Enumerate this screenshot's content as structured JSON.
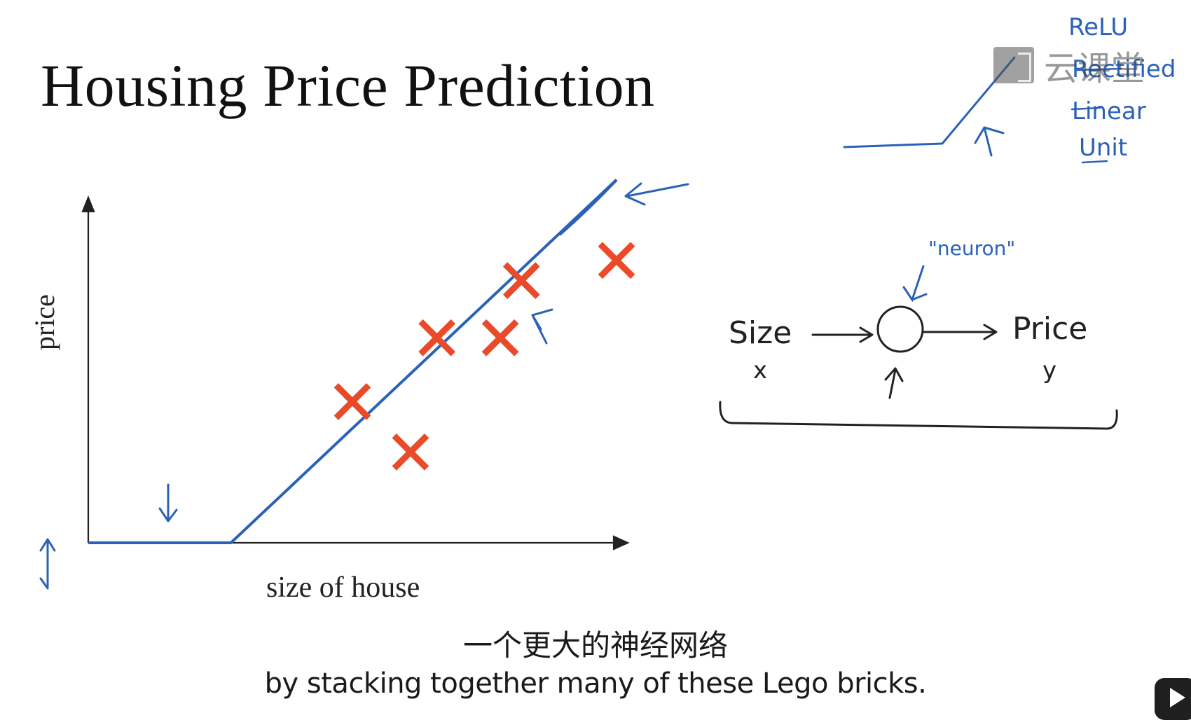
{
  "slide": {
    "title": "Housing Price Prediction",
    "y_axis_label": "price",
    "x_axis_label": "size of house"
  },
  "annotations": {
    "relu_lines": [
      "ReLU",
      "Rectified",
      "Linear",
      "Unit"
    ],
    "neuron_label": "\"neuron\"",
    "input_label": "Size",
    "input_var": "x",
    "output_label": "Price",
    "output_var": "y"
  },
  "watermark": {
    "text": "云课堂",
    "logo_icon": "video-logo-icon"
  },
  "subtitles": {
    "chinese": "一个更大的神经网络",
    "english": "by stacking together many of these Lego bricks."
  },
  "colors": {
    "ink_blue": "#2a62b8",
    "marker_red": "#ea4a2a",
    "axis": "#222222"
  },
  "chart_data": {
    "type": "scatter",
    "title": "Housing Price Prediction",
    "xlabel": "size of house",
    "ylabel": "price",
    "points": [
      {
        "x": 0.5,
        "y": 0.42
      },
      {
        "x": 0.61,
        "y": 0.27
      },
      {
        "x": 0.66,
        "y": 0.61
      },
      {
        "x": 0.78,
        "y": 0.61
      },
      {
        "x": 0.82,
        "y": 0.78
      },
      {
        "x": 1.0,
        "y": 0.84
      }
    ],
    "fit_line": [
      {
        "x": 0.0,
        "y": 0.0
      },
      {
        "x": 0.27,
        "y": 0.0
      },
      {
        "x": 1.0,
        "y": 1.08
      }
    ]
  }
}
